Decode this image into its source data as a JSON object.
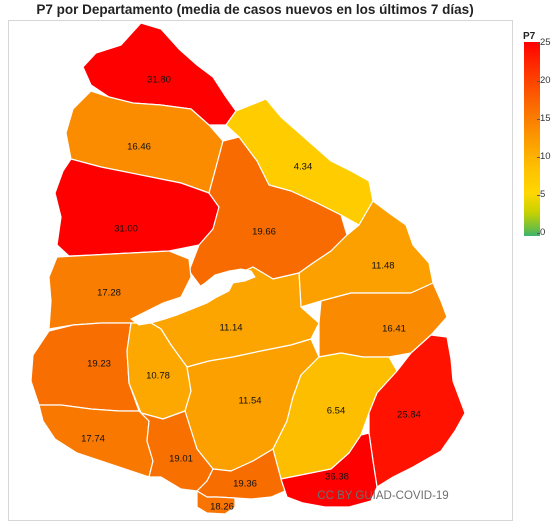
{
  "title": "P7 por Departamento (media de casos nuevos en los últimos 7 días)",
  "legend": {
    "title": "P7",
    "ticks": [
      "25",
      "20",
      "15",
      "10",
      "5",
      "0"
    ]
  },
  "credit": "CC BY GUIAD-COVID-19",
  "departments": [
    {
      "value": "31.80",
      "color": "#ff0000"
    },
    {
      "value": "16.46",
      "color": "#fb8c00"
    },
    {
      "value": "4.34",
      "color": "#ffcc00"
    },
    {
      "value": "31.00",
      "color": "#ff0000"
    },
    {
      "value": "19.66",
      "color": "#f86b00"
    },
    {
      "value": "11.48",
      "color": "#fca000"
    },
    {
      "value": "17.28",
      "color": "#f97d00"
    },
    {
      "value": "11.14",
      "color": "#fca400"
    },
    {
      "value": "16.41",
      "color": "#fa8a00"
    },
    {
      "value": "19.23",
      "color": "#f86e00"
    },
    {
      "value": "10.78",
      "color": "#fca800"
    },
    {
      "value": "11.54",
      "color": "#fca000"
    },
    {
      "value": "6.54",
      "color": "#fdbe00"
    },
    {
      "value": "25.84",
      "color": "#ff1200"
    },
    {
      "value": "17.74",
      "color": "#f97900"
    },
    {
      "value": "19.01",
      "color": "#f87000"
    },
    {
      "value": "19.36",
      "color": "#f86d00"
    },
    {
      "value": "18.26",
      "color": "#f97400"
    },
    {
      "value": "36.38",
      "color": "#ff0000"
    }
  ]
}
